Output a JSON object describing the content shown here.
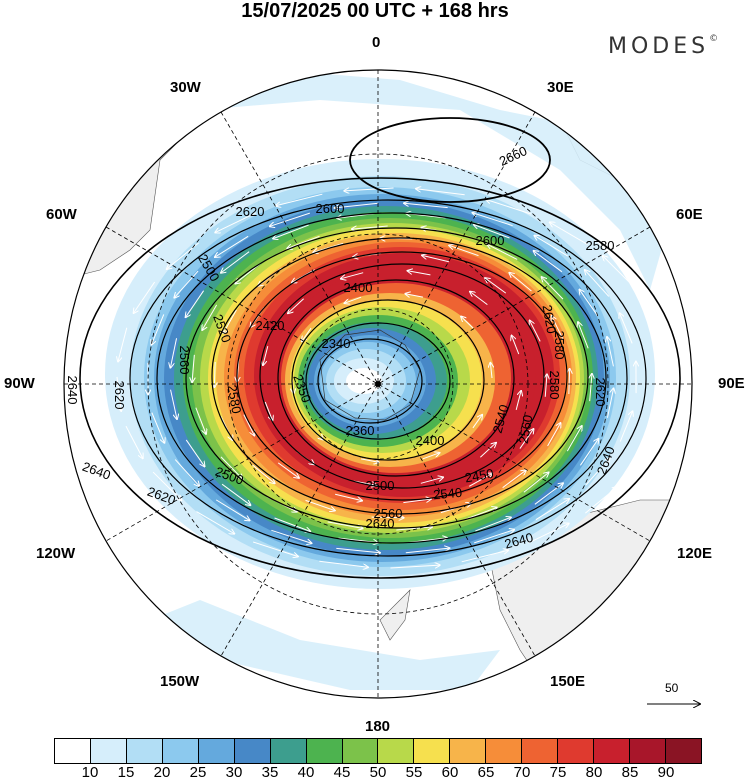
{
  "title": "15/07/2025  00 UTC  + 168 hrs",
  "brand": {
    "name": "MODES",
    "mark": "©"
  },
  "longitude_labels": {
    "top": "0",
    "top_right": "30E",
    "right_upper": "60E",
    "right": "90E",
    "right_lower": "120E",
    "bottom_right": "150E",
    "bottom": "180",
    "bottom_left": "150W",
    "left_lower": "120W",
    "left": "90W",
    "left_upper": "60W",
    "top_left": "30W"
  },
  "contour_labels": [
    "2660",
    "2620",
    "2600",
    "2580",
    "2600",
    "2400",
    "2340",
    "2420",
    "2500",
    "2520",
    "2560",
    "2580",
    "2620",
    "2640",
    "2640",
    "2620",
    "2580",
    "2500",
    "2350",
    "2360",
    "2400",
    "2450",
    "2540",
    "2500",
    "2560",
    "2640",
    "2640",
    "2620",
    "2580",
    "2560",
    "2540",
    "2620",
    "2640"
  ],
  "vector_reference": {
    "value": "50"
  },
  "colorbar": {
    "colors": [
      "#ffffff",
      "#d6eefb",
      "#b2def5",
      "#8cc9ee",
      "#64a9dd",
      "#4788c7",
      "#3d9e8e",
      "#4db34f",
      "#7cc24a",
      "#b8d94a",
      "#f6e04e",
      "#f7b44a",
      "#f68d39",
      "#ee6332",
      "#df3a2f",
      "#c8202d",
      "#a8162a",
      "#8a1424"
    ],
    "labels": [
      "10",
      "15",
      "20",
      "25",
      "30",
      "35",
      "40",
      "45",
      "50",
      "55",
      "60",
      "65",
      "70",
      "75",
      "80",
      "85",
      "90"
    ],
    "color_meaning": "wind speed shading"
  }
}
